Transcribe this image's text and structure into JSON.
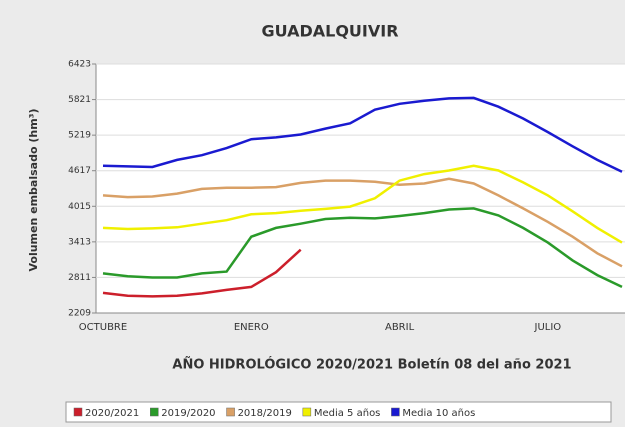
{
  "chart_data": {
    "type": "line",
    "title": "GUADALQUIVIR",
    "x_label": "AÑO HIDROLÓGICO 2020/2021 Boletín 08 del año 2021",
    "y_label": "Volumen embalsado (hm³)",
    "categories": [
      "OCTUBRE",
      null,
      null,
      null,
      null,
      null,
      "ENERO",
      null,
      null,
      null,
      null,
      null,
      "ABRIL",
      null,
      null,
      null,
      null,
      null,
      "JULIO",
      null,
      null,
      null
    ],
    "ylim": [
      2209,
      6423
    ],
    "yticks": [
      2209,
      2811,
      3413,
      4015,
      4617,
      5219,
      5821,
      6423
    ],
    "grid": true,
    "legend": "bottom",
    "series": [
      {
        "name": "2020/2021",
        "color": "#cc1f2b",
        "values": [
          2550,
          2500,
          2490,
          2500,
          2540,
          2600,
          2650,
          2900,
          3280,
          null,
          null,
          null,
          null,
          null,
          null,
          null,
          null,
          null,
          null,
          null,
          null,
          null
        ]
      },
      {
        "name": "2019/2020",
        "color": "#2a9a2a",
        "values": [
          2880,
          2830,
          2810,
          2810,
          2880,
          2910,
          3500,
          3650,
          3720,
          3800,
          3820,
          3810,
          3850,
          3900,
          3960,
          3980,
          3860,
          3650,
          3400,
          3100,
          2850,
          2650
        ]
      },
      {
        "name": "2018/2019",
        "color": "#d9a066",
        "values": [
          4200,
          4170,
          4180,
          4230,
          4310,
          4330,
          4330,
          4340,
          4410,
          4450,
          4450,
          4430,
          4380,
          4400,
          4480,
          4400,
          4200,
          3980,
          3750,
          3500,
          3220,
          3000
        ]
      },
      {
        "name": "Media 5 años",
        "color": "#f0f000",
        "values": [
          3650,
          3630,
          3640,
          3660,
          3720,
          3780,
          3880,
          3900,
          3940,
          3970,
          4010,
          4150,
          4450,
          4560,
          4620,
          4700,
          4620,
          4420,
          4200,
          3930,
          3650,
          3400
        ]
      },
      {
        "name": "Media 10 años",
        "color": "#1a1ad0",
        "values": [
          4700,
          4690,
          4680,
          4800,
          4880,
          5000,
          5150,
          5180,
          5230,
          5330,
          5420,
          5650,
          5750,
          5800,
          5840,
          5850,
          5700,
          5500,
          5270,
          5030,
          4800,
          4600
        ]
      }
    ]
  }
}
